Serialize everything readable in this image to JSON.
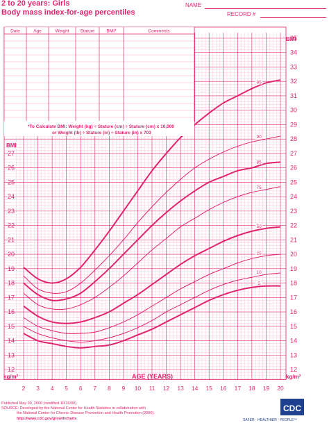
{
  "header": {
    "title_line1": "2 to 20 years: Girls",
    "title_line2": "Body mass index-for-age percentiles",
    "name_label": "NAME",
    "record_label": "RECORD #"
  },
  "table": {
    "columns": [
      "Date",
      "Age",
      "Weight",
      "Stature",
      "BMI*",
      "Comments"
    ]
  },
  "formula": {
    "line1": "*To Calculate BMI: Weight (kg) ÷ Stature (cm) ÷ Stature (cm) x 10,000",
    "line2": "or Weight (lb) ÷ Stature (in) ÷ Stature (in) x 703"
  },
  "footer": {
    "published": "Published May 30, 2000 (modified 10/16/00).",
    "source1": "SOURCE: Developed by the National Center for Health Statistics in collaboration with",
    "source2": "the National Center for Chronic Disease Prevention and Health Promotion (2000).",
    "url": "http://www.cdc.gov/growthcharts",
    "logo_text": "CDC",
    "tagline": "SAFER · HEALTHIER · PEOPLE™"
  },
  "chart_data": {
    "type": "line",
    "title": "Body mass index-for-age percentiles",
    "xlabel": "AGE (YEARS)",
    "ylabel_top": "BMI",
    "ylabel_bottom": "kg/m²",
    "xlim": [
      2,
      20
    ],
    "ylim": [
      12,
      35
    ],
    "ylim_left_scale": [
      12,
      28
    ],
    "x_ticks": [
      2,
      3,
      4,
      5,
      6,
      7,
      8,
      9,
      10,
      11,
      12,
      13,
      14,
      15,
      16,
      17,
      18,
      19,
      20
    ],
    "y_ticks_right": [
      12,
      13,
      14,
      15,
      16,
      17,
      18,
      19,
      20,
      21,
      22,
      23,
      24,
      25,
      26,
      27,
      28,
      29,
      30,
      31,
      32,
      33,
      34,
      35
    ],
    "y_ticks_left": [
      12,
      13,
      14,
      15,
      16,
      17,
      18,
      19,
      20,
      21,
      22,
      23,
      24,
      25,
      26,
      27
    ],
    "grid": true,
    "x": [
      2,
      3,
      4,
      5,
      6,
      7,
      8,
      9,
      10,
      11,
      12,
      13,
      14,
      15,
      16,
      17,
      18,
      19,
      20
    ],
    "series": [
      {
        "name": "95",
        "values": [
          19.1,
          18.3,
          18.0,
          18.3,
          19.1,
          20.3,
          21.6,
          23.0,
          24.4,
          25.8,
          27.0,
          28.1,
          29.0,
          29.8,
          30.5,
          31.0,
          31.5,
          31.9,
          32.1
        ],
        "bold": true
      },
      {
        "name": "90",
        "values": [
          18.5,
          17.6,
          17.3,
          17.4,
          18.0,
          18.9,
          19.9,
          21.0,
          22.2,
          23.3,
          24.3,
          25.2,
          26.0,
          26.6,
          27.1,
          27.5,
          27.8,
          28.0,
          28.2
        ],
        "bold": false
      },
      {
        "name": "85",
        "values": [
          18.0,
          17.2,
          16.8,
          16.9,
          17.3,
          18.1,
          19.0,
          20.0,
          21.0,
          22.0,
          22.9,
          23.7,
          24.4,
          25.0,
          25.4,
          25.8,
          26.0,
          26.3,
          26.4
        ],
        "bold": true
      },
      {
        "name": "75",
        "values": [
          17.3,
          16.5,
          16.2,
          16.2,
          16.5,
          17.0,
          17.7,
          18.5,
          19.4,
          20.3,
          21.1,
          21.9,
          22.5,
          23.1,
          23.6,
          24.0,
          24.3,
          24.5,
          24.7
        ],
        "bold": false
      },
      {
        "name": "50",
        "values": [
          16.4,
          15.7,
          15.3,
          15.2,
          15.3,
          15.6,
          16.0,
          16.6,
          17.2,
          17.9,
          18.6,
          19.3,
          19.9,
          20.4,
          20.9,
          21.3,
          21.6,
          21.8,
          21.9
        ],
        "bold": true
      },
      {
        "name": "25",
        "values": [
          15.6,
          15.0,
          14.7,
          14.5,
          14.5,
          14.6,
          14.9,
          15.3,
          15.8,
          16.4,
          17.0,
          17.6,
          18.1,
          18.6,
          19.0,
          19.4,
          19.7,
          19.9,
          20.0
        ],
        "bold": false
      },
      {
        "name": "10",
        "values": [
          15.0,
          14.5,
          14.2,
          14.0,
          13.9,
          14.0,
          14.2,
          14.5,
          14.9,
          15.4,
          16.0,
          16.5,
          17.0,
          17.5,
          17.9,
          18.2,
          18.4,
          18.6,
          18.7
        ],
        "bold": false
      },
      {
        "name": "5",
        "values": [
          14.5,
          14.0,
          13.8,
          13.6,
          13.5,
          13.6,
          13.7,
          14.0,
          14.4,
          14.8,
          15.3,
          15.8,
          16.3,
          16.8,
          17.2,
          17.5,
          17.7,
          17.8,
          17.8
        ],
        "bold": true
      }
    ]
  },
  "colors": {
    "accent": "#e0256f",
    "grid": "#f2a7c3",
    "logo_blue": "#1f3f8f"
  }
}
